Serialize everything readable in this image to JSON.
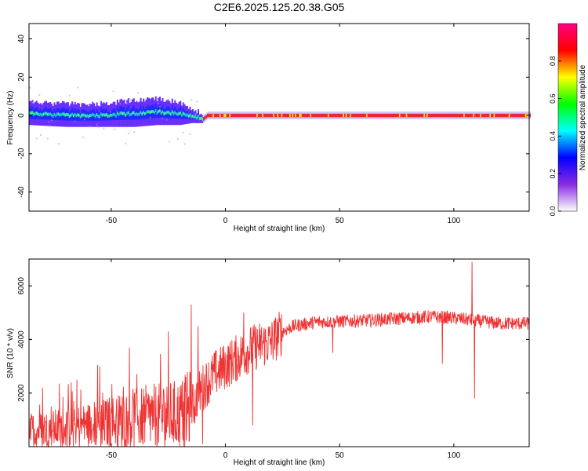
{
  "title": "C2E6.2025.125.20.38.G05",
  "chart_data": [
    {
      "type": "heatmap",
      "title": "C2E6.2025.125.20.38.G05",
      "xlabel": "Height of straight line (km)",
      "ylabel": "Frequency (Hz)",
      "xlim": [
        -86,
        133
      ],
      "ylim": [
        -50,
        48
      ],
      "xticks": [
        -50,
        0,
        50,
        100
      ],
      "yticks": [
        -40,
        -20,
        0,
        20,
        40
      ],
      "xtick_labels": [
        "-50",
        "0",
        "50",
        "100"
      ],
      "ytick_labels": [
        "-40",
        "-20",
        "0",
        "20",
        "40"
      ],
      "colorbar": {
        "label": "Normalized spectral amplitude",
        "ticks": [
          0.0,
          0.2,
          0.4,
          0.6,
          0.8
        ],
        "tick_labels": [
          "0.0",
          "0.2",
          "0.4",
          "0.6",
          "0.8"
        ],
        "range": [
          0,
          1
        ],
        "colormap_stops": [
          "#ffffff",
          "#8a2be2",
          "#0000ff",
          "#00ffff",
          "#00ff00",
          "#ffff00",
          "#ff0000",
          "#ff0080"
        ]
      },
      "ridge_profile": {
        "description_x": [
          -86,
          -70,
          -55,
          -40,
          -30,
          -20,
          -15,
          -12,
          -10,
          -8,
          0,
          10,
          20,
          50,
          90,
          100,
          110,
          133
        ],
        "center_hz": [
          1,
          0,
          0,
          1,
          2,
          1,
          0,
          -1,
          -2,
          0,
          0,
          0,
          0,
          0,
          0,
          0,
          0,
          0
        ],
        "halfwidth_hz": [
          6,
          6,
          6,
          7,
          7,
          6,
          4,
          3,
          2,
          2,
          2,
          2,
          2,
          2,
          2,
          2,
          2,
          2
        ]
      }
    },
    {
      "type": "line",
      "title": "",
      "xlabel": "Height of straight line (km)",
      "ylabel": "SNR (10 * v/v)",
      "xlim": [
        -86,
        133
      ],
      "ylim": [
        0,
        7000
      ],
      "xticks": [
        -50,
        0,
        50,
        100
      ],
      "yticks": [
        2000,
        4000,
        6000
      ],
      "xtick_labels": [
        "-50",
        "0",
        "50",
        "100"
      ],
      "ytick_labels": [
        "2000",
        "4000",
        "6000"
      ],
      "series": [
        {
          "name": "SNR",
          "color": "#ee3333",
          "trend_x": [
            -86,
            -70,
            -50,
            -35,
            -20,
            -15,
            -10,
            -5,
            0,
            5,
            10,
            15,
            20,
            25,
            30,
            40,
            60,
            80,
            90,
            100,
            110,
            120,
            133
          ],
          "trend_y": [
            600,
            700,
            900,
            1100,
            1200,
            1400,
            2200,
            2700,
            3000,
            3300,
            3600,
            3800,
            3900,
            4300,
            4500,
            4650,
            4700,
            4800,
            4850,
            4800,
            4700,
            4600,
            4600
          ],
          "spikes_x": [
            -80,
            -65,
            -55,
            -42,
            -25,
            -15,
            -12,
            -10,
            8,
            12,
            15,
            47,
            95,
            108,
            109
          ],
          "spikes_y": [
            2200,
            2500,
            3000,
            3700,
            4300,
            5300,
            4500,
            100,
            5000,
            800,
            3600,
            3500,
            3100,
            6900,
            1800
          ]
        }
      ]
    }
  ]
}
